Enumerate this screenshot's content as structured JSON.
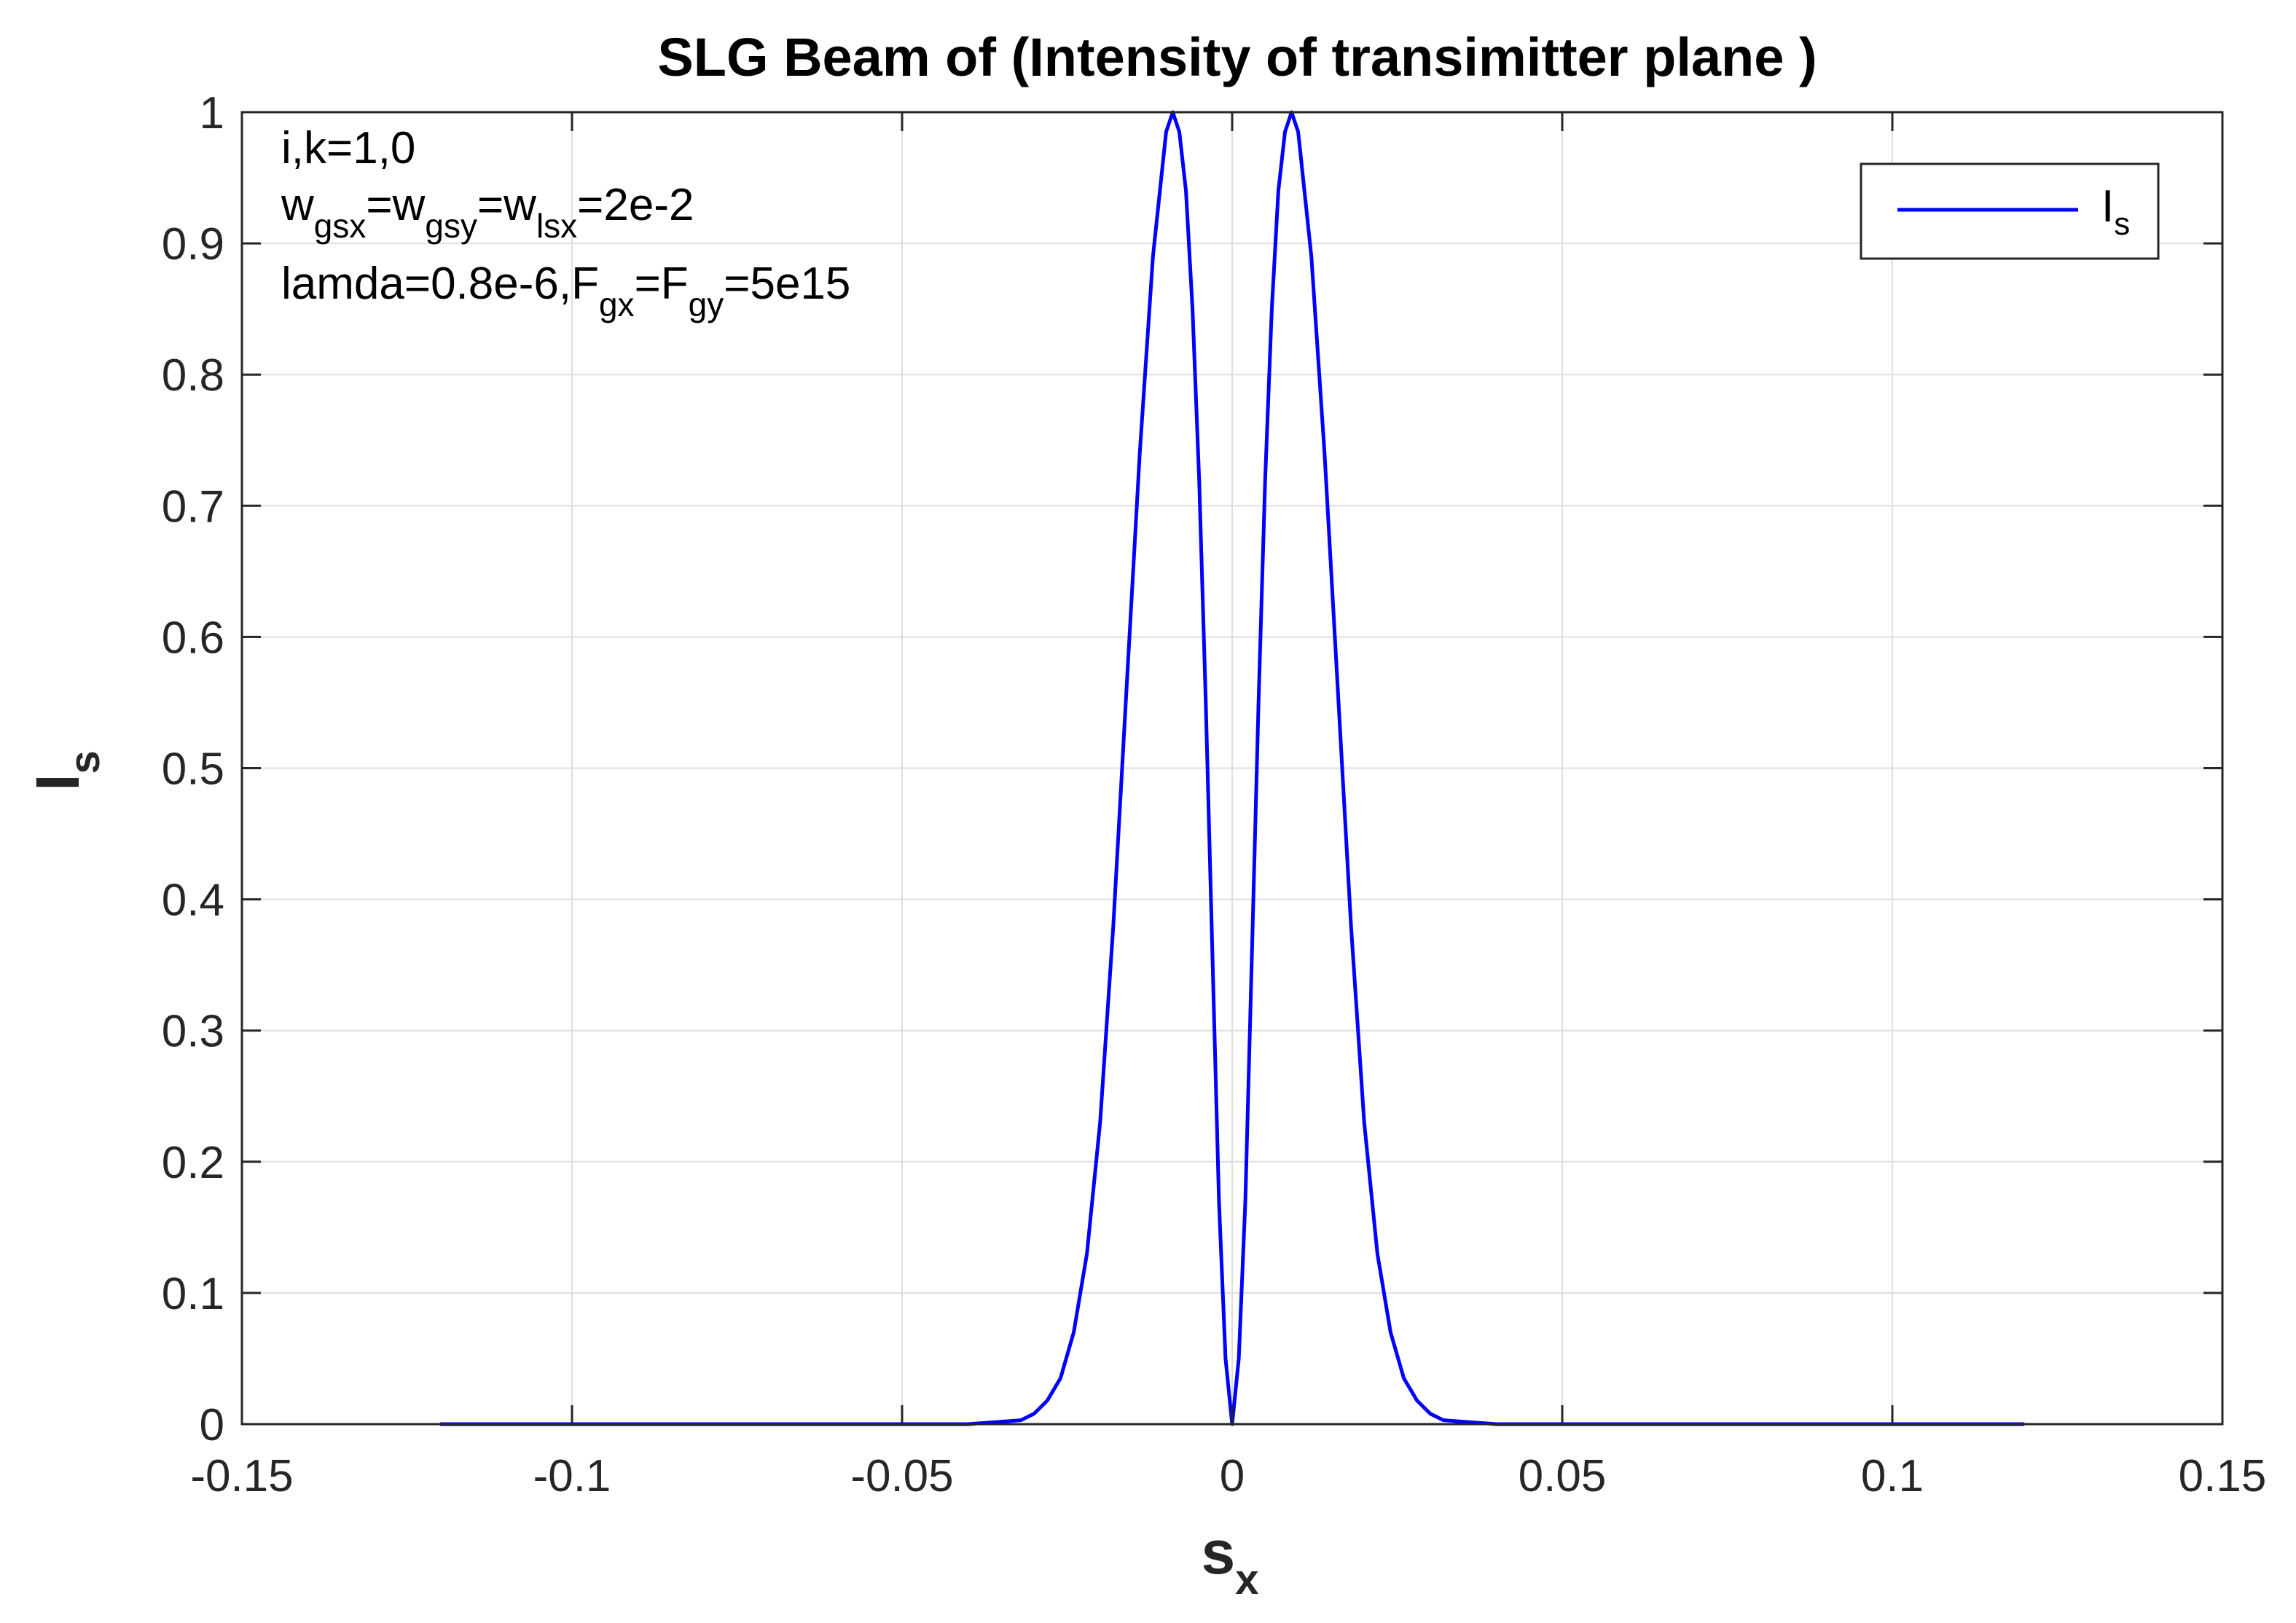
{
  "chart_data": {
    "type": "line",
    "title": "SLG Beam of (Intensity of transimitter plane )",
    "xlabel": {
      "main": "s",
      "sub": "x"
    },
    "ylabel": {
      "main": "I",
      "sub": "s"
    },
    "xlim": [
      -0.15,
      0.15
    ],
    "ylim": [
      0,
      1
    ],
    "xticks": [
      -0.15,
      -0.1,
      -0.05,
      0,
      0.05,
      0.1,
      0.15
    ],
    "xtick_labels": [
      "-0.15",
      "-0.1",
      "-0.05",
      "0",
      "0.05",
      "0.1",
      "0.15"
    ],
    "yticks": [
      0,
      0.1,
      0.2,
      0.3,
      0.4,
      0.5,
      0.6,
      0.7,
      0.8,
      0.9,
      1
    ],
    "ytick_labels": [
      "0",
      "0.1",
      "0.2",
      "0.3",
      "0.4",
      "0.5",
      "0.6",
      "0.7",
      "0.8",
      "0.9",
      "1"
    ],
    "grid": true,
    "legend_position": "top-right",
    "annotations": [
      [
        {
          "t": "i,k=1,0"
        }
      ],
      [
        {
          "t": "w"
        },
        {
          "t": "gsx",
          "sub": true
        },
        {
          "t": "=w"
        },
        {
          "t": "gsy",
          "sub": true
        },
        {
          "t": "=w"
        },
        {
          "t": "lsx",
          "sub": true
        },
        {
          "t": "=2e-2"
        }
      ],
      [
        {
          "t": "lamda=0.8e-6,F"
        },
        {
          "t": "gx",
          "sub": true
        },
        {
          "t": "=F"
        },
        {
          "t": "gy",
          "sub": true
        },
        {
          "t": "=5e15"
        }
      ]
    ],
    "series": [
      {
        "name": {
          "main": "I",
          "sub": "s"
        },
        "color": "#0000ff",
        "x": [
          -0.12,
          -0.04,
          -0.032,
          -0.03,
          -0.028,
          -0.026,
          -0.024,
          -0.022,
          -0.02,
          -0.018,
          -0.016,
          -0.014,
          -0.012,
          -0.01,
          -0.009,
          -0.008,
          -0.007,
          -0.006,
          -0.005,
          -0.004,
          -0.003,
          -0.002,
          -0.001,
          0,
          0.001,
          0.002,
          0.003,
          0.004,
          0.005,
          0.006,
          0.007,
          0.008,
          0.009,
          0.01,
          0.012,
          0.014,
          0.016,
          0.018,
          0.02,
          0.022,
          0.024,
          0.026,
          0.028,
          0.03,
          0.032,
          0.04,
          0.12
        ],
        "y": [
          0,
          0,
          0.003,
          0.008,
          0.018,
          0.035,
          0.07,
          0.13,
          0.23,
          0.38,
          0.56,
          0.74,
          0.89,
          0.985,
          1.0,
          0.985,
          0.94,
          0.85,
          0.72,
          0.55,
          0.36,
          0.17,
          0.05,
          0,
          0.05,
          0.17,
          0.36,
          0.55,
          0.72,
          0.85,
          0.94,
          0.985,
          1.0,
          0.985,
          0.89,
          0.74,
          0.56,
          0.38,
          0.23,
          0.13,
          0.07,
          0.035,
          0.018,
          0.008,
          0.003,
          0,
          0
        ]
      }
    ]
  }
}
